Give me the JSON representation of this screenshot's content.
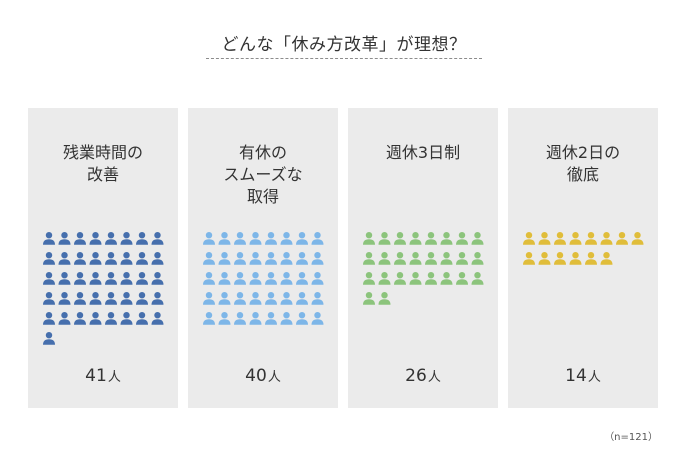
{
  "title": "どんな「休み方改革」が理想？",
  "note": "（n=121）",
  "chart_data": {
    "type": "pictograph",
    "title": "どんな「休み方改革」が理想？",
    "sample_size": "n=121",
    "unit": "人",
    "icon": "person-icon",
    "icons_per_row": 8,
    "categories": [
      {
        "label_lines": [
          "残業時間の",
          "改善"
        ],
        "value": 41,
        "color": "#466fad"
      },
      {
        "label_lines": [
          "有休の",
          "スムーズな",
          "取得"
        ],
        "value": 40,
        "color": "#7db6e8"
      },
      {
        "label_lines": [
          "週休3日制"
        ],
        "value": 26,
        "color": "#8cc47c"
      },
      {
        "label_lines": [
          "週休2日の",
          "徹底"
        ],
        "value": 14,
        "color": "#e0bd3a"
      }
    ]
  }
}
